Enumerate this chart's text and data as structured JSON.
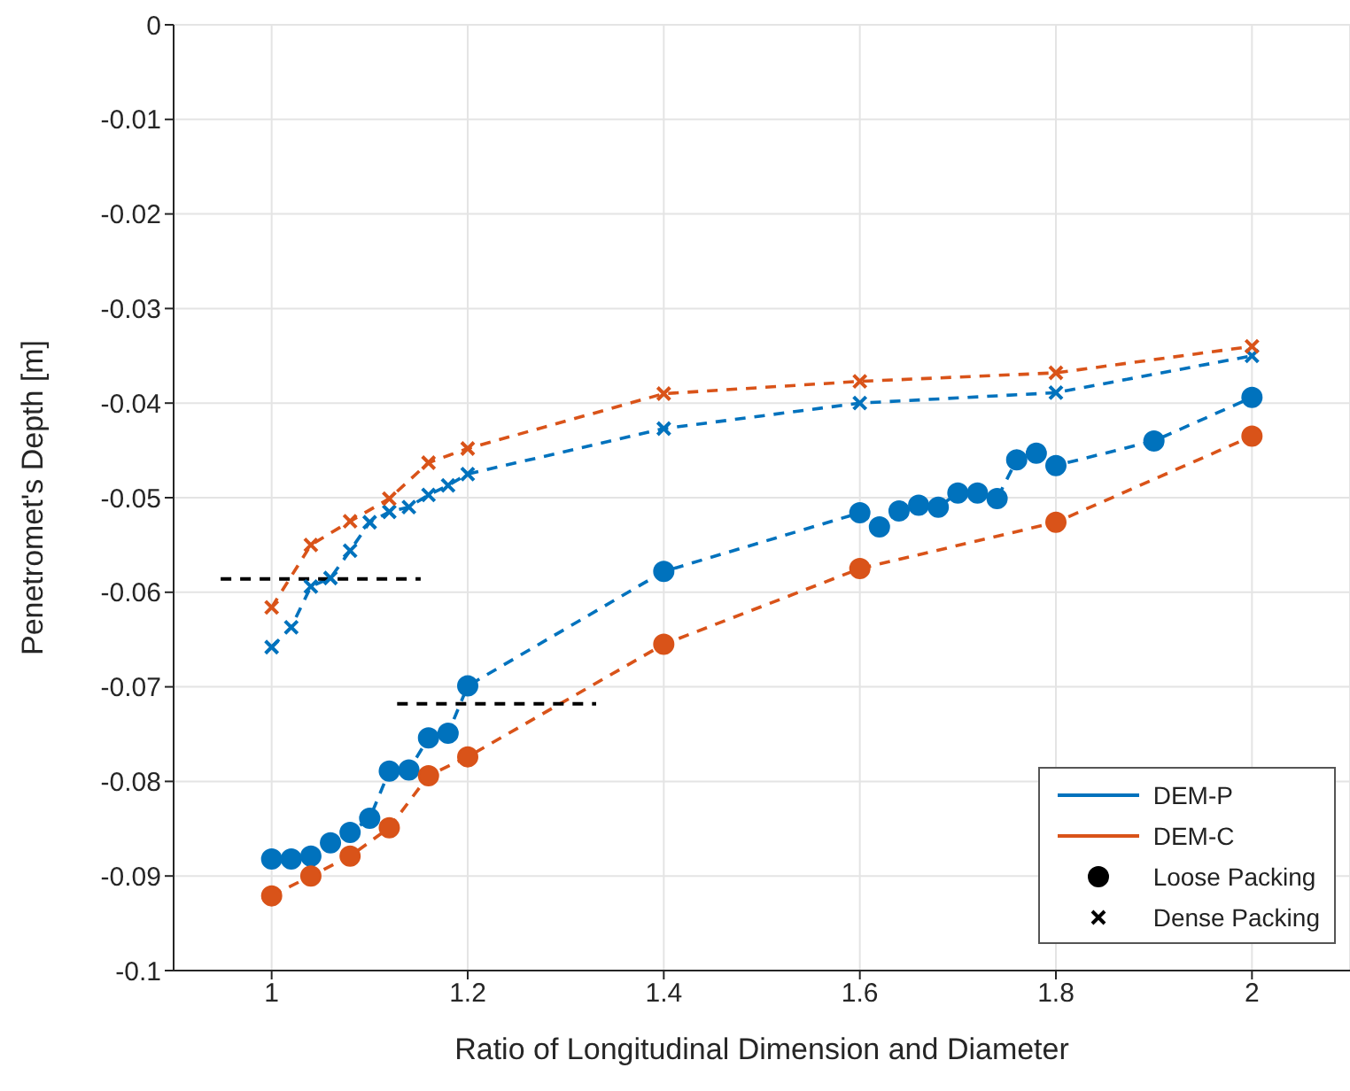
{
  "chart_data": {
    "type": "line",
    "xlabel": "Ratio of Longitudinal Dimension and Diameter",
    "ylabel": "Penetromet's Depth [m]",
    "xlim": [
      0.9,
      2.1
    ],
    "xticks": [
      1,
      1.2,
      1.4,
      1.6,
      1.8,
      2
    ],
    "ylim": [
      -0.1,
      0
    ],
    "yticks": [
      -0.1,
      -0.09,
      -0.08,
      -0.07,
      -0.06,
      -0.05,
      -0.04,
      -0.03,
      -0.02,
      -0.01,
      0
    ],
    "grid": true,
    "legend": "bottom right",
    "line_style": "dashed",
    "annotations": [
      "Loose Packing",
      "Dense Packing"
    ],
    "series": [
      {
        "name": "DEM-P",
        "color": "#0072bd",
        "marker": "circle",
        "x": [
          1,
          1.02,
          1.04,
          1.06,
          1.08,
          1.1,
          1.12,
          1.14,
          1.16,
          1.18,
          1.2,
          1.4,
          1.6,
          1.62,
          1.64,
          1.66,
          1.68,
          1.7,
          1.72,
          1.74,
          1.76,
          1.78,
          1.8,
          1.9,
          2
        ],
        "values": [
          -0.0882,
          -0.0882,
          -0.0879,
          -0.0865,
          -0.0854,
          -0.0839,
          -0.0789,
          -0.0788,
          -0.0754,
          -0.0749,
          -0.0699,
          -0.0578,
          -0.0516,
          -0.0531,
          -0.0514,
          -0.0508,
          -0.051,
          -0.0495,
          -0.0495,
          -0.0501,
          -0.046,
          -0.0453,
          -0.0466,
          -0.044,
          -0.0394
        ]
      },
      {
        "name": "DEM-C",
        "color": "#d95319",
        "marker": "circle",
        "x": [
          1,
          1.04,
          1.08,
          1.12,
          1.16,
          1.2,
          1.4,
          1.6,
          1.8,
          2
        ],
        "values": [
          -0.0921,
          -0.09,
          -0.0879,
          -0.0849,
          -0.0794,
          -0.0774,
          -0.0655,
          -0.0575,
          -0.0526,
          -0.0435
        ]
      },
      {
        "color": "#0072bd",
        "marker": "cross",
        "x": [
          1,
          1.02,
          1.04,
          1.06,
          1.08,
          1.1,
          1.12,
          1.14,
          1.16,
          1.18,
          1.2,
          1.4,
          1.6,
          1.8,
          2
        ],
        "values": [
          -0.0658,
          -0.0637,
          -0.0594,
          -0.0585,
          -0.0556,
          -0.0526,
          -0.0515,
          -0.051,
          -0.0497,
          -0.0487,
          -0.0475,
          -0.0427,
          -0.04,
          -0.0389,
          -0.035
        ]
      },
      {
        "color": "#d95319",
        "marker": "cross",
        "x": [
          1,
          1.04,
          1.08,
          1.12,
          1.16,
          1.2,
          1.4,
          1.6,
          1.8,
          2
        ],
        "values": [
          -0.0616,
          -0.055,
          -0.0525,
          -0.0501,
          -0.0463,
          -0.0448,
          -0.039,
          -0.0377,
          -0.0368,
          -0.034
        ]
      },
      {
        "color": "#000000",
        "marker": "none",
        "x": [
          0.948,
          1.152
        ],
        "values": [
          -0.0586,
          -0.0586
        ]
      },
      {
        "color": "#000000",
        "marker": "none",
        "x": [
          1.128,
          1.331
        ],
        "values": [
          -0.0718,
          -0.0718
        ]
      }
    ]
  }
}
